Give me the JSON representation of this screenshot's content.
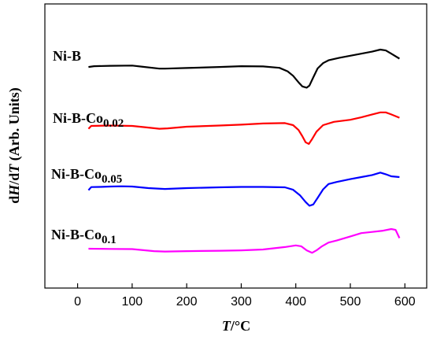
{
  "chart_data": {
    "type": "line",
    "title": "",
    "xlabel": {
      "italic": "T",
      "rest": "/°C"
    },
    "ylabel": {
      "pre": "d",
      "italic1": "H",
      "mid": "/d",
      "italic2": "T",
      "post": " (Arb. Units)"
    },
    "xlim": [
      -60,
      640
    ],
    "xticks": [
      0,
      100,
      200,
      300,
      400,
      500,
      600
    ],
    "yticks_shown": false,
    "grid": false,
    "series": [
      {
        "name": "Ni-B",
        "label_main": "Ni-B",
        "label_sub": "",
        "color": "#000000",
        "x": [
          20,
          30,
          60,
          100,
          120,
          150,
          160,
          200,
          260,
          300,
          340,
          370,
          385,
          395,
          405,
          412,
          420,
          425,
          432,
          440,
          450,
          460,
          480,
          500,
          520,
          540,
          555,
          565,
          575,
          590
        ],
        "y": [
          0.55,
          0.75,
          0.85,
          0.9,
          0.6,
          0.15,
          0.15,
          0.3,
          0.55,
          0.75,
          0.7,
          0.35,
          -0.5,
          -1.6,
          -3.2,
          -4.2,
          -4.5,
          -4.0,
          -2.0,
          0.2,
          1.5,
          2.2,
          2.8,
          3.3,
          3.8,
          4.3,
          4.8,
          4.6,
          3.8,
          2.6
        ]
      },
      {
        "name": "Ni-B-Co0.02",
        "label_main": "Ni-B-Co",
        "label_sub": "0.02",
        "color": "#ff0000",
        "x": [
          20,
          25,
          60,
          100,
          130,
          150,
          165,
          200,
          260,
          300,
          340,
          380,
          395,
          405,
          412,
          418,
          424,
          430,
          438,
          450,
          470,
          500,
          520,
          540,
          555,
          565,
          575,
          590
        ],
        "y": [
          -0.7,
          0.0,
          0.1,
          0.0,
          -0.4,
          -0.7,
          -0.6,
          -0.2,
          0.1,
          0.3,
          0.6,
          0.7,
          0.2,
          -1.0,
          -2.5,
          -4.0,
          -4.4,
          -3.2,
          -1.4,
          0.2,
          1.0,
          1.5,
          2.1,
          2.8,
          3.3,
          3.3,
          2.8,
          2.0
        ]
      },
      {
        "name": "Ni-B-Co0.05",
        "label_main": "Ni-B-Co",
        "label_sub": "0.05",
        "color": "#0000ff",
        "x": [
          20,
          25,
          40,
          60,
          80,
          100,
          130,
          160,
          200,
          260,
          300,
          340,
          380,
          395,
          408,
          418,
          425,
          432,
          440,
          450,
          460,
          475,
          500,
          520,
          540,
          555,
          565,
          575,
          590
        ],
        "y": [
          -0.7,
          0.05,
          0.1,
          0.2,
          0.25,
          0.2,
          -0.2,
          -0.4,
          -0.2,
          0.0,
          0.1,
          0.1,
          0.0,
          -0.6,
          -2.0,
          -3.6,
          -4.5,
          -4.2,
          -2.6,
          -0.5,
          0.8,
          1.3,
          2.0,
          2.5,
          3.0,
          3.6,
          3.2,
          2.7,
          2.5
        ]
      },
      {
        "name": "Ni-B-Co0.1",
        "label_main": "Ni-B-Co",
        "label_sub": "0.1",
        "color": "#ff00ff",
        "x": [
          20,
          60,
          100,
          140,
          160,
          200,
          260,
          300,
          340,
          380,
          400,
          410,
          420,
          430,
          438,
          448,
          460,
          475,
          500,
          520,
          540,
          560,
          575,
          583,
          590
        ],
        "y": [
          0.0,
          -0.05,
          -0.1,
          -0.6,
          -0.7,
          -0.6,
          -0.5,
          -0.4,
          -0.2,
          0.4,
          0.8,
          0.6,
          -0.4,
          -1.0,
          -0.4,
          0.6,
          1.5,
          2.0,
          3.0,
          3.8,
          4.1,
          4.4,
          4.8,
          4.6,
          2.6
        ]
      }
    ]
  }
}
